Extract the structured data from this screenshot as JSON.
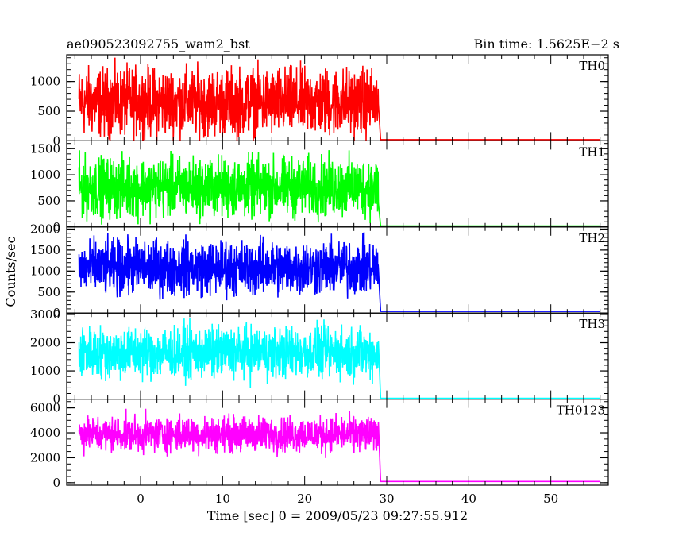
{
  "chart_data": {
    "type": "line",
    "title": "ae090523092755_wam2_bst",
    "subtitle": "Bin time: 1.5625E−2 s",
    "xlabel": "Time [sec] 0 = 2009/05/23 09:27:55.912",
    "ylabel": "Counts/sec",
    "xlim": [
      -9,
      57
    ],
    "x_ticks": [
      0,
      10,
      20,
      30,
      40,
      50
    ],
    "burst_interval": [
      -7.5,
      29
    ],
    "panels": [
      {
        "name": "TH0",
        "color": "#ff0000",
        "ylim": [
          0,
          1450
        ],
        "y_ticks": [
          0,
          500,
          1000
        ],
        "burst_level": 650,
        "burst_spread": 560,
        "background_level": 20,
        "series": [
          {
            "x": -7.5,
            "y": 620
          },
          {
            "x": -5,
            "y": 700
          },
          {
            "x": 0,
            "y": 640
          },
          {
            "x": 5,
            "y": 660
          },
          {
            "x": 10,
            "y": 650
          },
          {
            "x": 15,
            "y": 640
          },
          {
            "x": 20,
            "y": 670
          },
          {
            "x": 25,
            "y": 650
          },
          {
            "x": 28.9,
            "y": 640
          },
          {
            "x": 29.3,
            "y": 20
          },
          {
            "x": 56,
            "y": 20
          }
        ]
      },
      {
        "name": "TH1",
        "color": "#00ff00",
        "ylim": [
          0,
          1650
        ],
        "y_ticks": [
          0,
          500,
          1000,
          1500
        ],
        "burst_level": 760,
        "burst_spread": 560,
        "background_level": 20,
        "series": [
          {
            "x": -7.5,
            "y": 720
          },
          {
            "x": -5,
            "y": 770
          },
          {
            "x": 0,
            "y": 760
          },
          {
            "x": 5,
            "y": 780
          },
          {
            "x": 10,
            "y": 760
          },
          {
            "x": 15,
            "y": 750
          },
          {
            "x": 20,
            "y": 770
          },
          {
            "x": 25,
            "y": 760
          },
          {
            "x": 28.9,
            "y": 740
          },
          {
            "x": 29.3,
            "y": 20
          },
          {
            "x": 56,
            "y": 20
          }
        ]
      },
      {
        "name": "TH2",
        "color": "#0000ff",
        "ylim": [
          0,
          2050
        ],
        "y_ticks": [
          0,
          500,
          1000,
          1500,
          2000
        ],
        "burst_level": 1080,
        "burst_spread": 640,
        "background_level": 40,
        "series": [
          {
            "x": -7.5,
            "y": 1050
          },
          {
            "x": -5,
            "y": 1100
          },
          {
            "x": 0,
            "y": 1080
          },
          {
            "x": 5,
            "y": 1090
          },
          {
            "x": 10,
            "y": 1070
          },
          {
            "x": 15,
            "y": 1080
          },
          {
            "x": 20,
            "y": 1100
          },
          {
            "x": 25,
            "y": 1080
          },
          {
            "x": 28.9,
            "y": 1060
          },
          {
            "x": 29.3,
            "y": 40
          },
          {
            "x": 56,
            "y": 40
          }
        ]
      },
      {
        "name": "TH3",
        "color": "#00ffff",
        "ylim": [
          0,
          3050
        ],
        "y_ticks": [
          0,
          1000,
          2000,
          3000
        ],
        "burst_level": 1650,
        "burst_spread": 900,
        "background_level": 30,
        "series": [
          {
            "x": -7.5,
            "y": 1600
          },
          {
            "x": -5,
            "y": 1700
          },
          {
            "x": 0,
            "y": 1650
          },
          {
            "x": 5,
            "y": 1680
          },
          {
            "x": 10,
            "y": 1650
          },
          {
            "x": 15,
            "y": 1660
          },
          {
            "x": 20,
            "y": 1680
          },
          {
            "x": 25,
            "y": 1650
          },
          {
            "x": 28.9,
            "y": 1620
          },
          {
            "x": 29.3,
            "y": 30
          },
          {
            "x": 56,
            "y": 30
          }
        ]
      },
      {
        "name": "TH0123",
        "color": "#ff00ff",
        "ylim": [
          -200,
          6700
        ],
        "y_ticks": [
          0,
          2000,
          4000,
          6000
        ],
        "burst_level": 3900,
        "burst_spread": 1400,
        "background_level": 100,
        "series": [
          {
            "x": -7.5,
            "y": 3800
          },
          {
            "x": -5,
            "y": 4000
          },
          {
            "x": 0,
            "y": 3900
          },
          {
            "x": 5,
            "y": 3950
          },
          {
            "x": 10,
            "y": 3900
          },
          {
            "x": 15,
            "y": 3880
          },
          {
            "x": 20,
            "y": 3950
          },
          {
            "x": 25,
            "y": 3900
          },
          {
            "x": 28.9,
            "y": 3850
          },
          {
            "x": 29.3,
            "y": 100
          },
          {
            "x": 56,
            "y": 100
          }
        ]
      }
    ],
    "grid": false,
    "legend": "panel labels at top-right"
  }
}
